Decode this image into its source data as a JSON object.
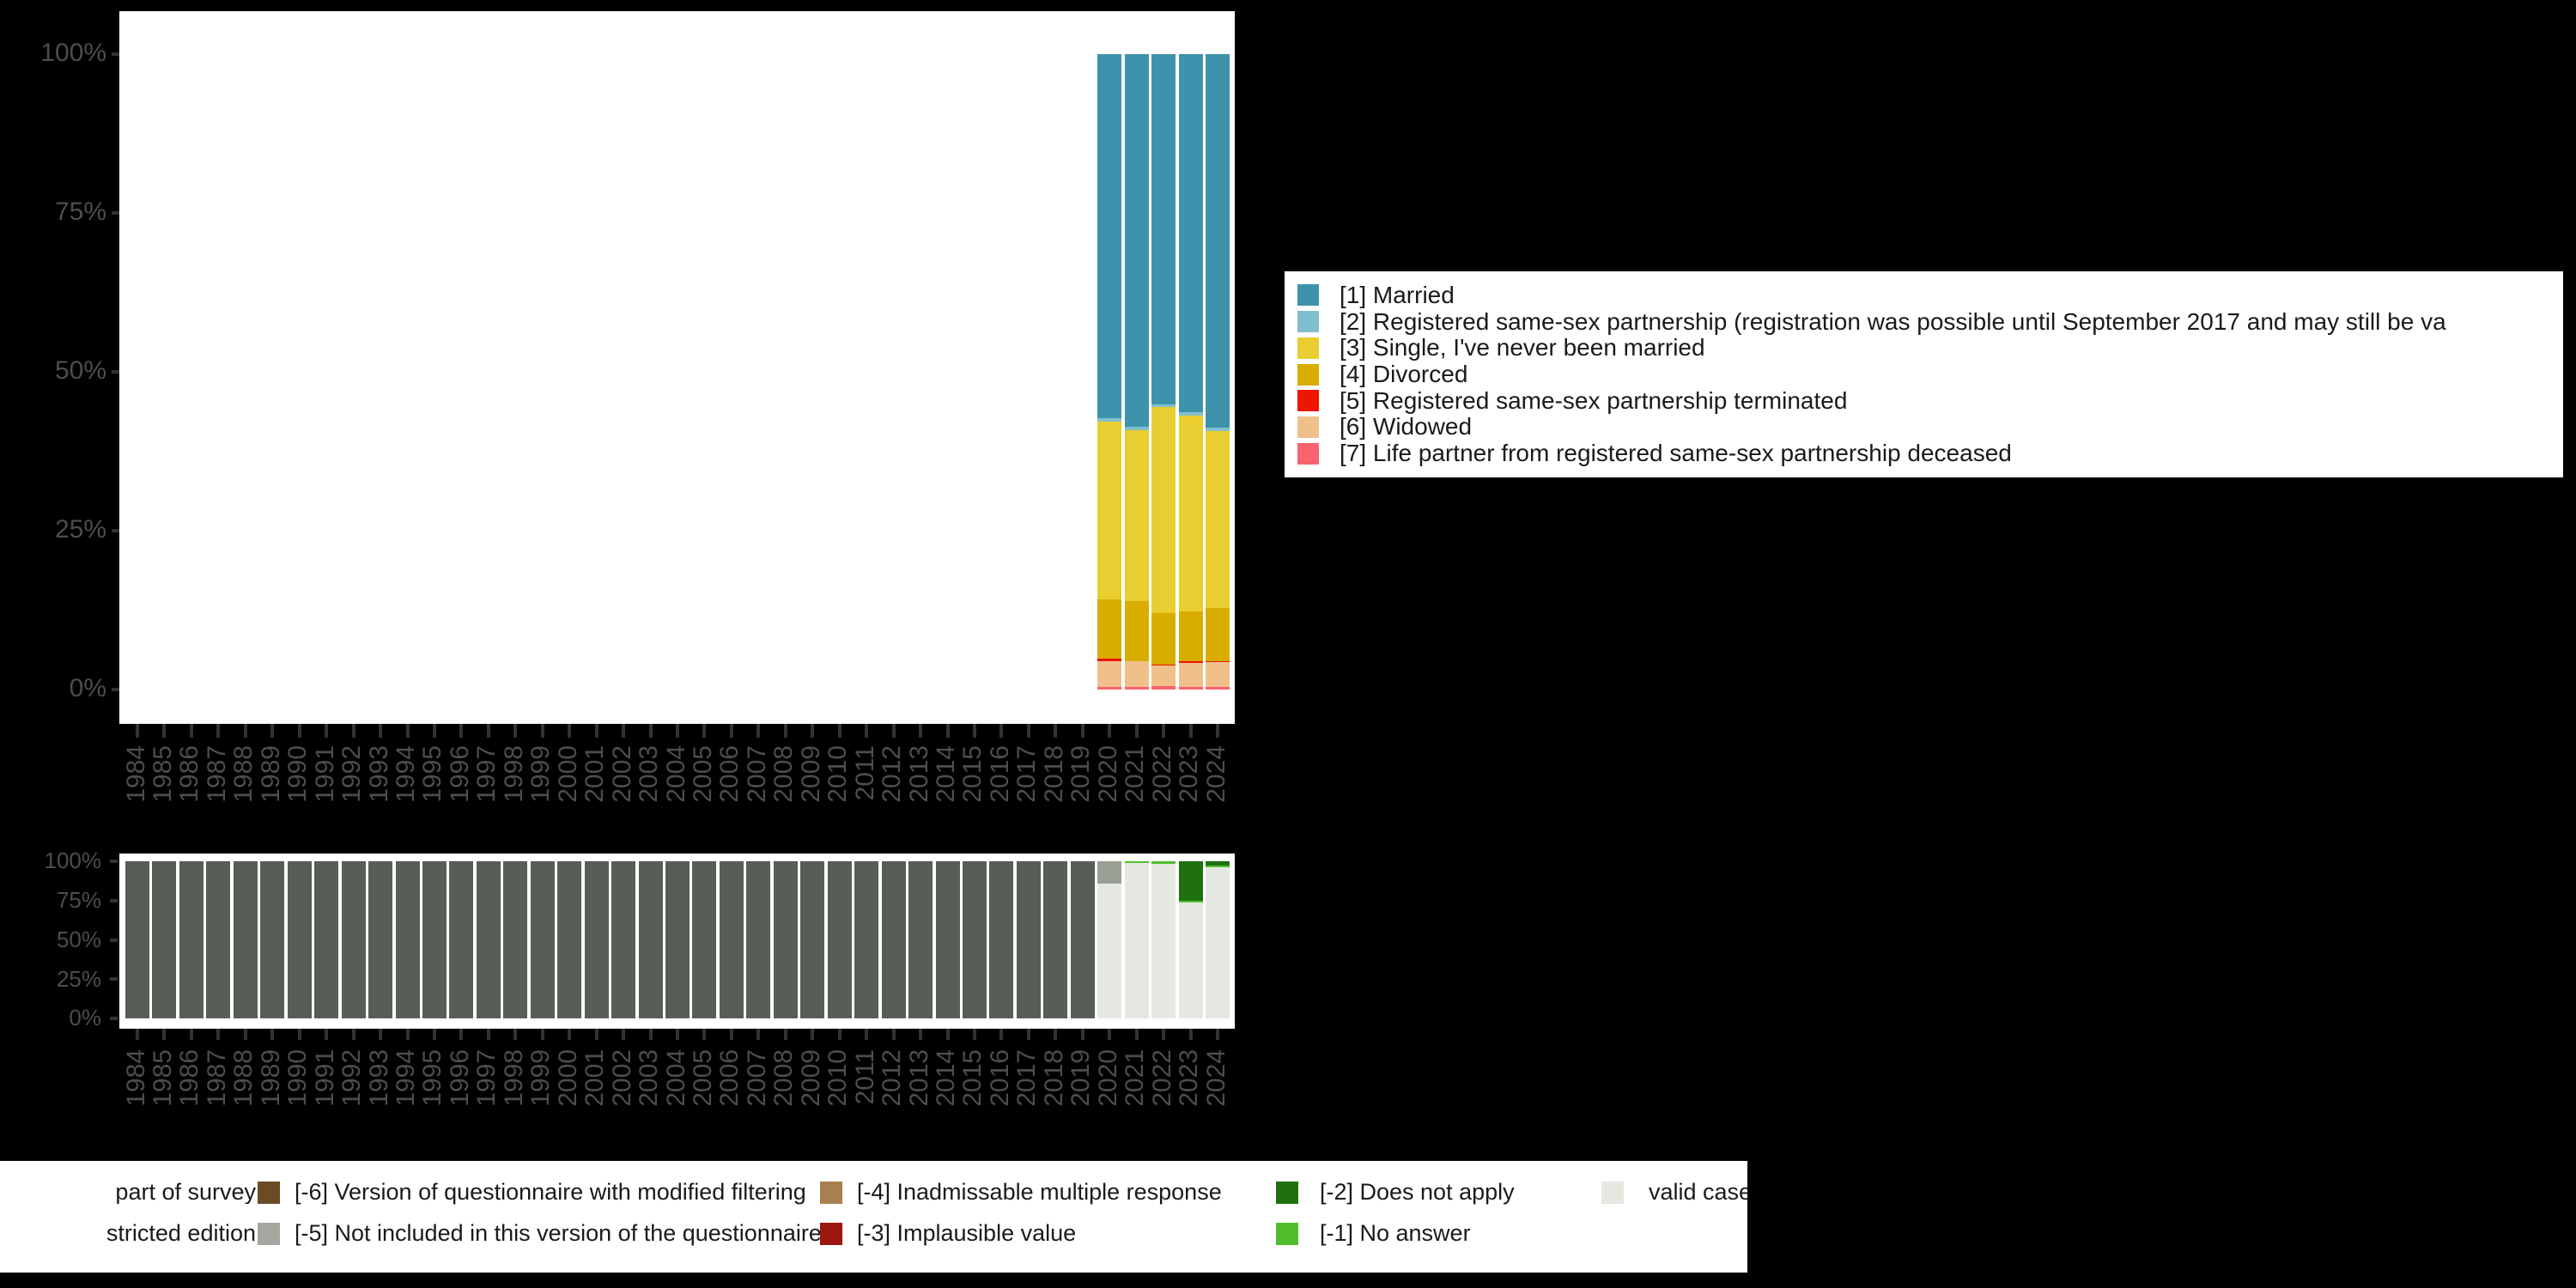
{
  "page": {
    "background": "#000000"
  },
  "chart_data": [
    {
      "name": "variable-distribution",
      "type": "bar",
      "stacked": true,
      "unit": "percent",
      "ylim": [
        0,
        100
      ],
      "grid": false,
      "y_ticks": [
        {
          "label": "0%",
          "value": 0
        },
        {
          "label": "25%",
          "value": 25
        },
        {
          "label": "50%",
          "value": 50
        },
        {
          "label": "75%",
          "value": 75
        },
        {
          "label": "100%",
          "value": 100
        }
      ],
      "categories": [
        "1984",
        "1985",
        "1986",
        "1987",
        "1988",
        "1989",
        "1990",
        "1991",
        "1992",
        "1993",
        "1994",
        "1995",
        "1996",
        "1997",
        "1998",
        "1999",
        "2000",
        "2001",
        "2002",
        "2003",
        "2004",
        "2005",
        "2006",
        "2007",
        "2008",
        "2009",
        "2010",
        "2011",
        "2012",
        "2013",
        "2014",
        "2015",
        "2016",
        "2017",
        "2018",
        "2019",
        "2020",
        "2021",
        "2022",
        "2023",
        "2024"
      ],
      "data_years": [
        "2020",
        "2021",
        "2022",
        "2023",
        "2024"
      ],
      "series": [
        {
          "code": "1",
          "label": "[1] Married",
          "color": "#3E93AC",
          "values": {
            "2020": 57.3,
            "2021": 58.7,
            "2022": 55.1,
            "2023": 56.4,
            "2024": 58.8
          }
        },
        {
          "code": "2",
          "label": "[2] Registered same-sex partnership (registration was possible until September 2017 and may still be va",
          "color": "#82BFCE",
          "values": {
            "2020": 0.5,
            "2021": 0.5,
            "2022": 0.5,
            "2023": 0.5,
            "2024": 0.5
          }
        },
        {
          "code": "3",
          "label": "[3] Single, I've never been married",
          "color": "#E8CE30",
          "values": {
            "2020": 28.0,
            "2021": 26.9,
            "2022": 32.4,
            "2023": 30.8,
            "2024": 27.9
          }
        },
        {
          "code": "4",
          "label": "[4] Divorced",
          "color": "#D9AD00",
          "values": {
            "2020": 9.4,
            "2021": 9.4,
            "2022": 8.1,
            "2023": 7.8,
            "2024": 8.4
          }
        },
        {
          "code": "5",
          "label": "[5] Registered same-sex partnership terminated",
          "color": "#EE1502",
          "values": {
            "2020": 0.3,
            "2021": 0.1,
            "2022": 0.1,
            "2023": 0.3,
            "2024": 0.1
          }
        },
        {
          "code": "6",
          "label": "[6] Widowed",
          "color": "#F0C08B",
          "values": {
            "2020": 4.1,
            "2021": 4.0,
            "2022": 3.3,
            "2023": 3.8,
            "2024": 3.9
          }
        },
        {
          "code": "7",
          "label": "[7] Life partner from registered same-sex partnership deceased",
          "color": "#F8636D",
          "values": {
            "2020": 0.4,
            "2021": 0.4,
            "2022": 0.5,
            "2023": 0.4,
            "2024": 0.4
          }
        }
      ],
      "legend_position": "right"
    },
    {
      "name": "missing-values-distribution",
      "type": "bar",
      "stacked": true,
      "unit": "percent",
      "ylim": [
        0,
        100
      ],
      "grid": false,
      "y_ticks": [
        {
          "label": "0%",
          "value": 0
        },
        {
          "label": "25%",
          "value": 25
        },
        {
          "label": "50%",
          "value": 50
        },
        {
          "label": "75%",
          "value": 75
        },
        {
          "label": "100%",
          "value": 100
        }
      ],
      "categories": [
        "1984",
        "1985",
        "1986",
        "1987",
        "1988",
        "1989",
        "1990",
        "1991",
        "1992",
        "1993",
        "1994",
        "1995",
        "1996",
        "1997",
        "1998",
        "1999",
        "2000",
        "2001",
        "2002",
        "2003",
        "2004",
        "2005",
        "2006",
        "2007",
        "2008",
        "2009",
        "2010",
        "2011",
        "2012",
        "2013",
        "2014",
        "2015",
        "2016",
        "2017",
        "2018",
        "2019",
        "2020",
        "2021",
        "2022",
        "2023",
        "2024"
      ],
      "segment_colors": {
        "not_part_of_survey": "#575E55",
        "not_included_in_version": "#9AA095",
        "does_not_apply": "#1E7011",
        "no_answer": "#52BE2D",
        "valid": "#E4E8E1"
      },
      "bars": [
        {
          "year": "1984",
          "segments": [
            [
              "not_part_of_survey",
              100
            ]
          ]
        },
        {
          "year": "1985",
          "segments": [
            [
              "not_part_of_survey",
              100
            ]
          ]
        },
        {
          "year": "1986",
          "segments": [
            [
              "not_part_of_survey",
              100
            ]
          ]
        },
        {
          "year": "1987",
          "segments": [
            [
              "not_part_of_survey",
              100
            ]
          ]
        },
        {
          "year": "1988",
          "segments": [
            [
              "not_part_of_survey",
              100
            ]
          ]
        },
        {
          "year": "1989",
          "segments": [
            [
              "not_part_of_survey",
              100
            ]
          ]
        },
        {
          "year": "1990",
          "segments": [
            [
              "not_part_of_survey",
              100
            ]
          ]
        },
        {
          "year": "1991",
          "segments": [
            [
              "not_part_of_survey",
              100
            ]
          ]
        },
        {
          "year": "1992",
          "segments": [
            [
              "not_part_of_survey",
              100
            ]
          ]
        },
        {
          "year": "1993",
          "segments": [
            [
              "not_part_of_survey",
              100
            ]
          ]
        },
        {
          "year": "1994",
          "segments": [
            [
              "not_part_of_survey",
              100
            ]
          ]
        },
        {
          "year": "1995",
          "segments": [
            [
              "not_part_of_survey",
              100
            ]
          ]
        },
        {
          "year": "1996",
          "segments": [
            [
              "not_part_of_survey",
              100
            ]
          ]
        },
        {
          "year": "1997",
          "segments": [
            [
              "not_part_of_survey",
              100
            ]
          ]
        },
        {
          "year": "1998",
          "segments": [
            [
              "not_part_of_survey",
              100
            ]
          ]
        },
        {
          "year": "1999",
          "segments": [
            [
              "not_part_of_survey",
              100
            ]
          ]
        },
        {
          "year": "2000",
          "segments": [
            [
              "not_part_of_survey",
              100
            ]
          ]
        },
        {
          "year": "2001",
          "segments": [
            [
              "not_part_of_survey",
              100
            ]
          ]
        },
        {
          "year": "2002",
          "segments": [
            [
              "not_part_of_survey",
              100
            ]
          ]
        },
        {
          "year": "2003",
          "segments": [
            [
              "not_part_of_survey",
              100
            ]
          ]
        },
        {
          "year": "2004",
          "segments": [
            [
              "not_part_of_survey",
              100
            ]
          ]
        },
        {
          "year": "2005",
          "segments": [
            [
              "not_part_of_survey",
              100
            ]
          ]
        },
        {
          "year": "2006",
          "segments": [
            [
              "not_part_of_survey",
              100
            ]
          ]
        },
        {
          "year": "2007",
          "segments": [
            [
              "not_part_of_survey",
              100
            ]
          ]
        },
        {
          "year": "2008",
          "segments": [
            [
              "not_part_of_survey",
              100
            ]
          ]
        },
        {
          "year": "2009",
          "segments": [
            [
              "not_part_of_survey",
              100
            ]
          ]
        },
        {
          "year": "2010",
          "segments": [
            [
              "not_part_of_survey",
              100
            ]
          ]
        },
        {
          "year": "2011",
          "segments": [
            [
              "not_part_of_survey",
              100
            ]
          ]
        },
        {
          "year": "2012",
          "segments": [
            [
              "not_part_of_survey",
              100
            ]
          ]
        },
        {
          "year": "2013",
          "segments": [
            [
              "not_part_of_survey",
              100
            ]
          ]
        },
        {
          "year": "2014",
          "segments": [
            [
              "not_part_of_survey",
              100
            ]
          ]
        },
        {
          "year": "2015",
          "segments": [
            [
              "not_part_of_survey",
              100
            ]
          ]
        },
        {
          "year": "2016",
          "segments": [
            [
              "not_part_of_survey",
              100
            ]
          ]
        },
        {
          "year": "2017",
          "segments": [
            [
              "not_part_of_survey",
              100
            ]
          ]
        },
        {
          "year": "2018",
          "segments": [
            [
              "not_part_of_survey",
              100
            ]
          ]
        },
        {
          "year": "2019",
          "segments": [
            [
              "not_part_of_survey",
              100
            ]
          ]
        },
        {
          "year": "2020",
          "segments": [
            [
              "not_included_in_version",
              14.0
            ],
            [
              "valid",
              86.0
            ]
          ]
        },
        {
          "year": "2021",
          "segments": [
            [
              "no_answer",
              1.0
            ],
            [
              "valid",
              99.0
            ]
          ]
        },
        {
          "year": "2022",
          "segments": [
            [
              "no_answer",
              1.5
            ],
            [
              "valid",
              98.5
            ]
          ]
        },
        {
          "year": "2023",
          "segments": [
            [
              "does_not_apply",
              25.0
            ],
            [
              "no_answer",
              1.5
            ],
            [
              "valid",
              73.5
            ]
          ]
        },
        {
          "year": "2024",
          "segments": [
            [
              "does_not_apply",
              2.7
            ],
            [
              "no_answer",
              1.0
            ],
            [
              "valid",
              96.3
            ]
          ]
        }
      ],
      "legend_position": "bottom"
    }
  ],
  "legend_bottom": {
    "rows": [
      {
        "items": [
          {
            "label": "part of survey",
            "color": null,
            "clipped": true
          },
          {
            "label": "[-6] Version of questionnaire with modified filtering",
            "color": "#6B4A24"
          },
          {
            "label": "[-4] Inadmissable multiple response",
            "color": "#A87F4F"
          },
          {
            "label": "[-2] Does not apply",
            "color": "#1E7011"
          },
          {
            "label": "valid cases",
            "color": "#E4E8E1"
          }
        ]
      },
      {
        "items": [
          {
            "label": "stricted edition",
            "color": null,
            "clipped": true
          },
          {
            "label": "[-5] Not included in this version of the questionnaire",
            "color": "#A3A7A0"
          },
          {
            "label": "[-3] Implausible value",
            "color": "#9C1510"
          },
          {
            "label": "[-1] No answer",
            "color": "#52BE2D"
          }
        ]
      }
    ]
  }
}
